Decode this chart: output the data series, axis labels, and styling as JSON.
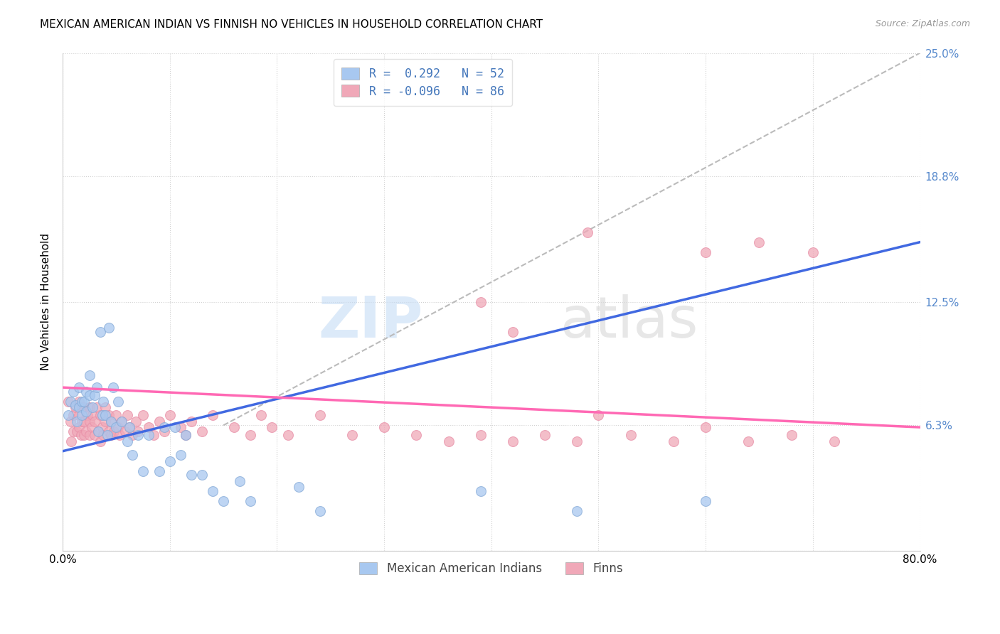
{
  "title": "MEXICAN AMERICAN INDIAN VS FINNISH NO VEHICLES IN HOUSEHOLD CORRELATION CHART",
  "source": "Source: ZipAtlas.com",
  "ylabel": "No Vehicles in Household",
  "xlabel": "",
  "xlim": [
    0.0,
    0.8
  ],
  "ylim": [
    0.0,
    0.25
  ],
  "yticks": [
    0.0,
    0.063,
    0.125,
    0.188,
    0.25
  ],
  "ytick_labels": [
    "",
    "6.3%",
    "12.5%",
    "18.8%",
    "25.0%"
  ],
  "xticks": [
    0.0,
    0.1,
    0.2,
    0.3,
    0.4,
    0.5,
    0.6,
    0.7,
    0.8
  ],
  "xtick_labels": [
    "0.0%",
    "",
    "",
    "",
    "",
    "",
    "",
    "",
    "80.0%"
  ],
  "legend_R_blue": "R =  0.292",
  "legend_N_blue": "N = 52",
  "legend_R_pink": "R = -0.096",
  "legend_N_pink": "N = 86",
  "blue_color": "#a8c8f0",
  "pink_color": "#f0a8b8",
  "blue_line_color": "#4169e1",
  "pink_line_color": "#ff69b4",
  "blue_line_x": [
    0.0,
    0.8
  ],
  "blue_line_y": [
    0.05,
    0.155
  ],
  "pink_line_x": [
    0.0,
    0.8
  ],
  "pink_line_y": [
    0.082,
    0.062
  ],
  "dashed_line_x": [
    0.15,
    0.8
  ],
  "dashed_line_y": [
    0.063,
    0.25
  ],
  "blue_scatter_x": [
    0.005,
    0.007,
    0.01,
    0.012,
    0.013,
    0.015,
    0.015,
    0.018,
    0.018,
    0.02,
    0.022,
    0.022,
    0.025,
    0.025,
    0.028,
    0.03,
    0.032,
    0.033,
    0.035,
    0.037,
    0.038,
    0.04,
    0.042,
    0.043,
    0.045,
    0.047,
    0.05,
    0.052,
    0.055,
    0.06,
    0.062,
    0.065,
    0.07,
    0.075,
    0.08,
    0.09,
    0.095,
    0.1,
    0.105,
    0.11,
    0.115,
    0.12,
    0.13,
    0.14,
    0.15,
    0.165,
    0.175,
    0.22,
    0.24,
    0.39,
    0.48,
    0.6
  ],
  "blue_scatter_y": [
    0.068,
    0.075,
    0.08,
    0.073,
    0.065,
    0.072,
    0.082,
    0.068,
    0.075,
    0.075,
    0.07,
    0.08,
    0.078,
    0.088,
    0.072,
    0.078,
    0.082,
    0.06,
    0.11,
    0.068,
    0.075,
    0.068,
    0.058,
    0.112,
    0.065,
    0.082,
    0.062,
    0.075,
    0.065,
    0.055,
    0.062,
    0.048,
    0.058,
    0.04,
    0.058,
    0.04,
    0.062,
    0.045,
    0.062,
    0.048,
    0.058,
    0.038,
    0.038,
    0.03,
    0.025,
    0.035,
    0.025,
    0.032,
    0.02,
    0.03,
    0.02,
    0.025
  ],
  "pink_scatter_x": [
    0.005,
    0.007,
    0.008,
    0.01,
    0.01,
    0.012,
    0.013,
    0.015,
    0.015,
    0.015,
    0.017,
    0.018,
    0.018,
    0.02,
    0.02,
    0.02,
    0.022,
    0.023,
    0.025,
    0.025,
    0.025,
    0.027,
    0.028,
    0.03,
    0.03,
    0.032,
    0.033,
    0.035,
    0.035,
    0.037,
    0.038,
    0.04,
    0.04,
    0.043,
    0.043,
    0.045,
    0.045,
    0.048,
    0.05,
    0.052,
    0.053,
    0.055,
    0.058,
    0.06,
    0.062,
    0.065,
    0.068,
    0.07,
    0.075,
    0.08,
    0.085,
    0.09,
    0.095,
    0.1,
    0.11,
    0.115,
    0.12,
    0.13,
    0.14,
    0.16,
    0.175,
    0.185,
    0.195,
    0.21,
    0.24,
    0.27,
    0.3,
    0.33,
    0.36,
    0.39,
    0.42,
    0.45,
    0.48,
    0.5,
    0.53,
    0.57,
    0.6,
    0.64,
    0.68,
    0.72,
    0.49,
    0.39,
    0.42,
    0.6,
    0.65,
    0.7
  ],
  "pink_scatter_y": [
    0.075,
    0.065,
    0.055,
    0.06,
    0.068,
    0.072,
    0.06,
    0.062,
    0.068,
    0.075,
    0.058,
    0.065,
    0.072,
    0.058,
    0.065,
    0.072,
    0.06,
    0.068,
    0.058,
    0.065,
    0.072,
    0.062,
    0.068,
    0.058,
    0.065,
    0.072,
    0.06,
    0.055,
    0.068,
    0.062,
    0.058,
    0.065,
    0.072,
    0.06,
    0.068,
    0.058,
    0.065,
    0.06,
    0.068,
    0.062,
    0.058,
    0.065,
    0.06,
    0.068,
    0.062,
    0.058,
    0.065,
    0.06,
    0.068,
    0.062,
    0.058,
    0.065,
    0.06,
    0.068,
    0.062,
    0.058,
    0.065,
    0.06,
    0.068,
    0.062,
    0.058,
    0.068,
    0.062,
    0.058,
    0.068,
    0.058,
    0.062,
    0.058,
    0.055,
    0.058,
    0.055,
    0.058,
    0.055,
    0.068,
    0.058,
    0.055,
    0.062,
    0.055,
    0.058,
    0.055,
    0.16,
    0.125,
    0.11,
    0.15,
    0.155,
    0.15
  ]
}
